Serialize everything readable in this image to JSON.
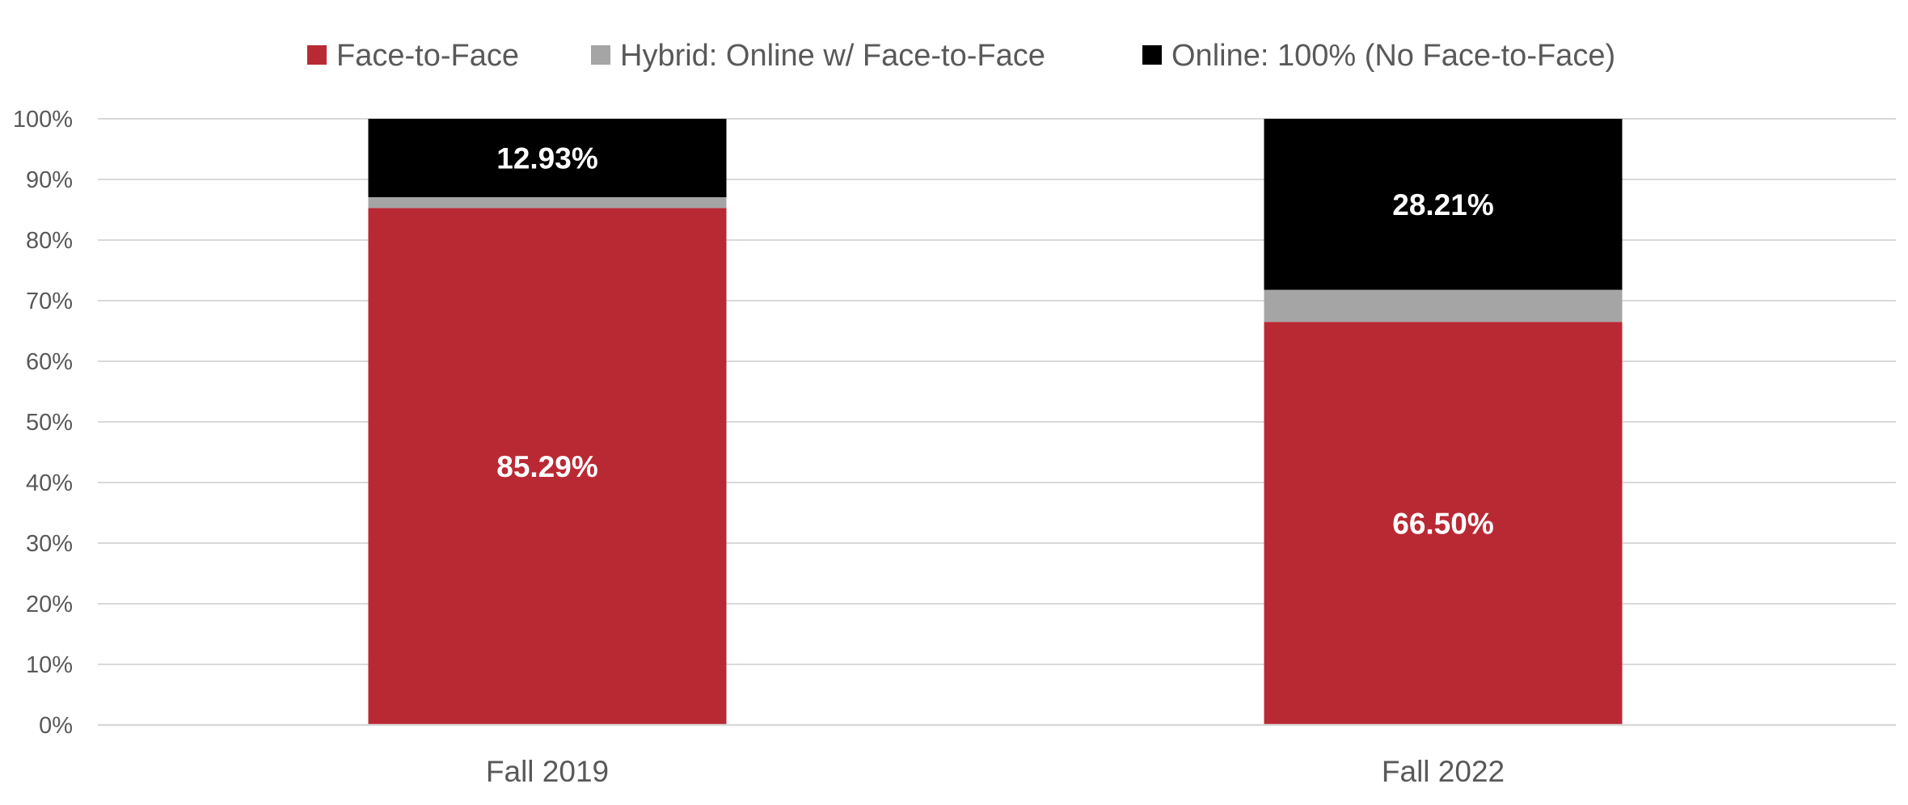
{
  "chart_data": {
    "type": "bar",
    "stacked": true,
    "percent_stacked": true,
    "categories": [
      "Fall 2019",
      "Fall 2022"
    ],
    "series": [
      {
        "name": "Face-to-Face",
        "color": "#b92934",
        "values": [
          85.29,
          66.5
        ],
        "labels": [
          "85.29%",
          "66.50%"
        ]
      },
      {
        "name": "Hybrid: Online w/ Face-to-Face",
        "color": "#a5a5a5",
        "values": [
          1.78,
          5.29
        ],
        "labels": [
          null,
          null
        ]
      },
      {
        "name": "Online: 100% (No Face-to-Face)",
        "color": "#000000",
        "values": [
          12.93,
          28.21
        ],
        "labels": [
          "12.93%",
          "28.21%"
        ]
      }
    ],
    "yticks": [
      "0%",
      "10%",
      "20%",
      "30%",
      "40%",
      "50%",
      "60%",
      "70%",
      "80%",
      "90%",
      "100%"
    ],
    "ylim": [
      0,
      100
    ],
    "grid": true,
    "legend_position": "top"
  }
}
